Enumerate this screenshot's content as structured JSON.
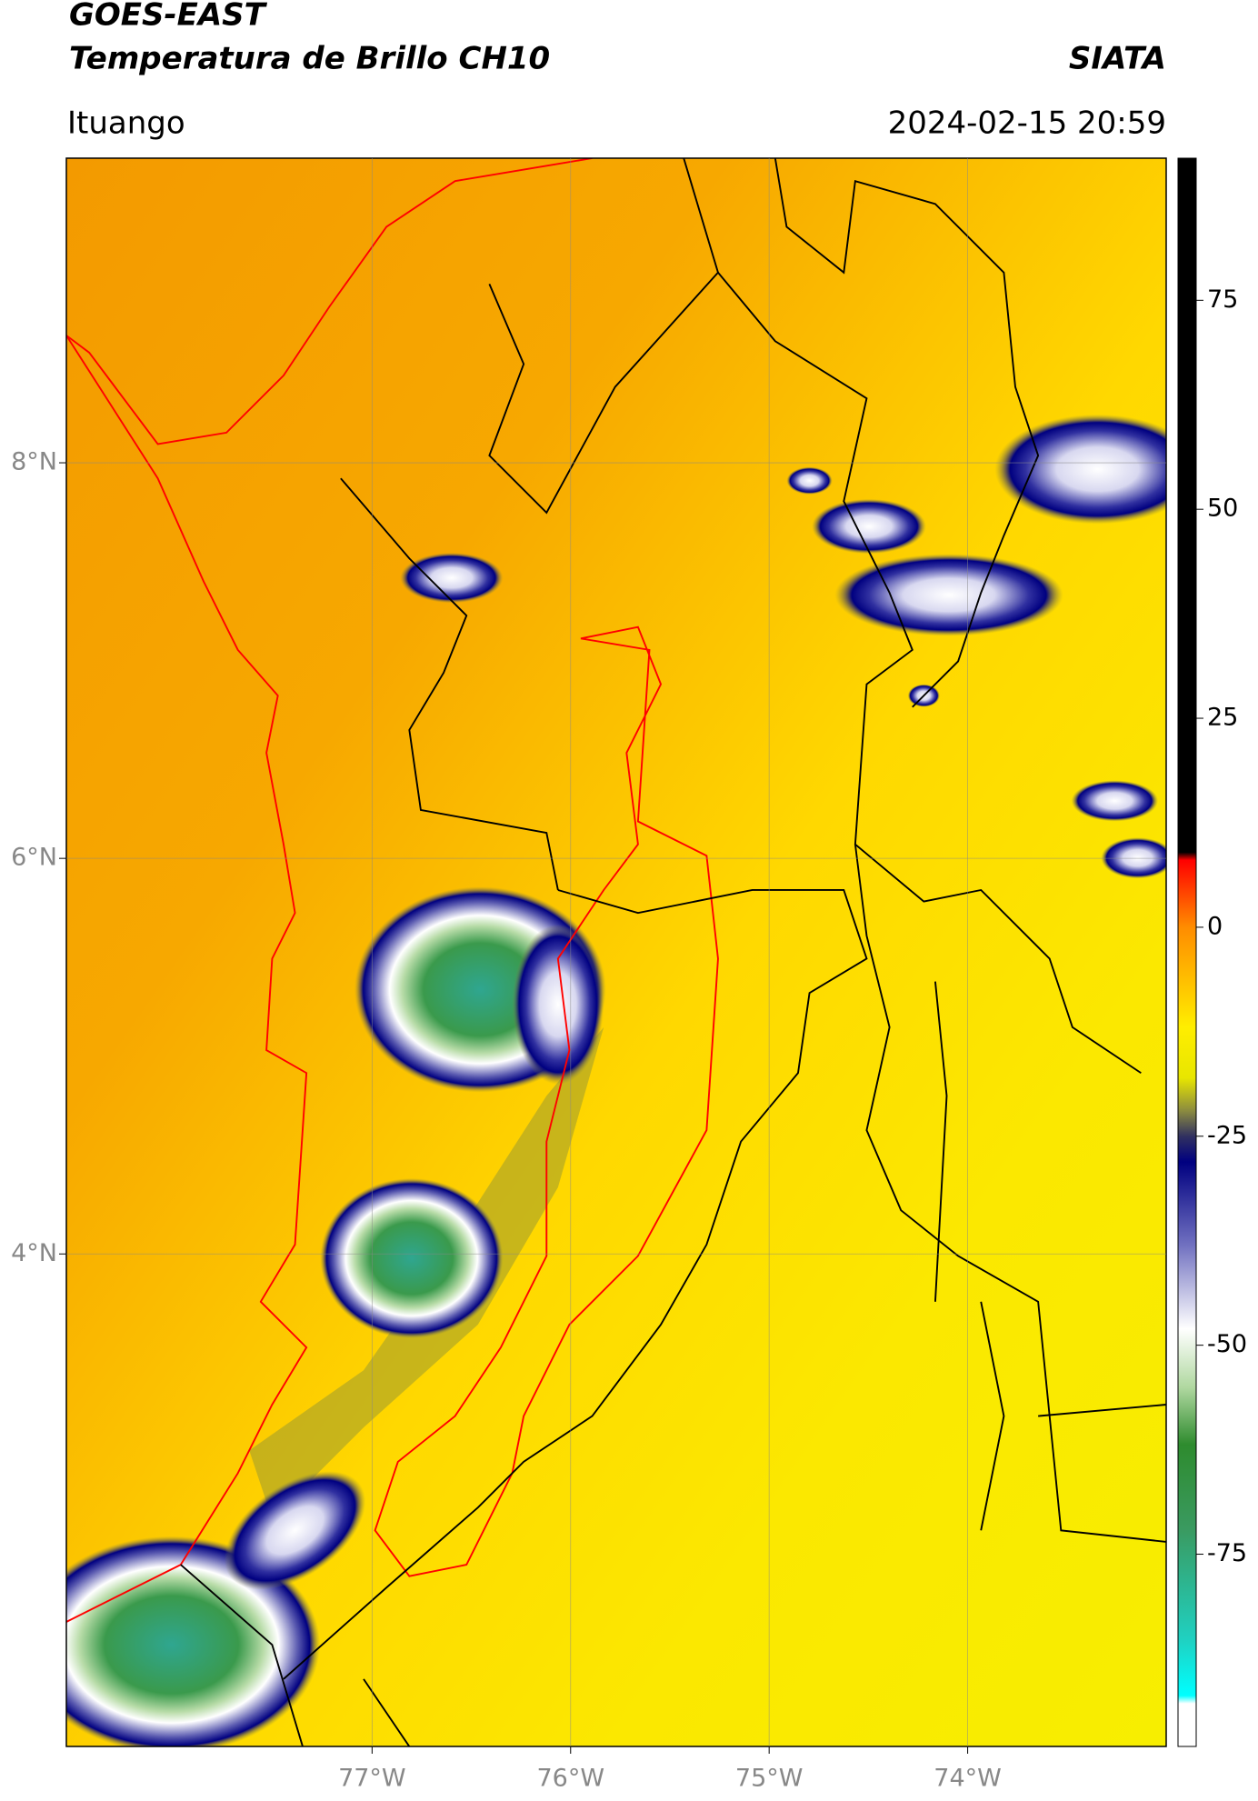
{
  "chart_data": {
    "type": "map",
    "title": "GOES-EAST",
    "subtitle": "Temperatura de Brillo CH10",
    "source": "SIATA",
    "location": "Ituango",
    "datetime": "2024-02-15 20:59",
    "xlim": [
      -78.54,
      -73.0
    ],
    "ylim": [
      1.51,
      9.54
    ],
    "xticks": [
      {
        "value": -77,
        "label": "77°W"
      },
      {
        "value": -76,
        "label": "76°W"
      },
      {
        "value": -75,
        "label": "75°W"
      },
      {
        "value": -74,
        "label": "74°W"
      }
    ],
    "yticks": [
      {
        "value": 8,
        "label": "8°N"
      },
      {
        "value": 6,
        "label": "6°N"
      },
      {
        "value": 4,
        "label": "4°N"
      }
    ],
    "grid": true,
    "colorbar": {
      "clim": [
        -98,
        92
      ],
      "ticks": [
        75,
        50,
        25,
        0,
        -25,
        -50,
        -75
      ]
    }
  }
}
